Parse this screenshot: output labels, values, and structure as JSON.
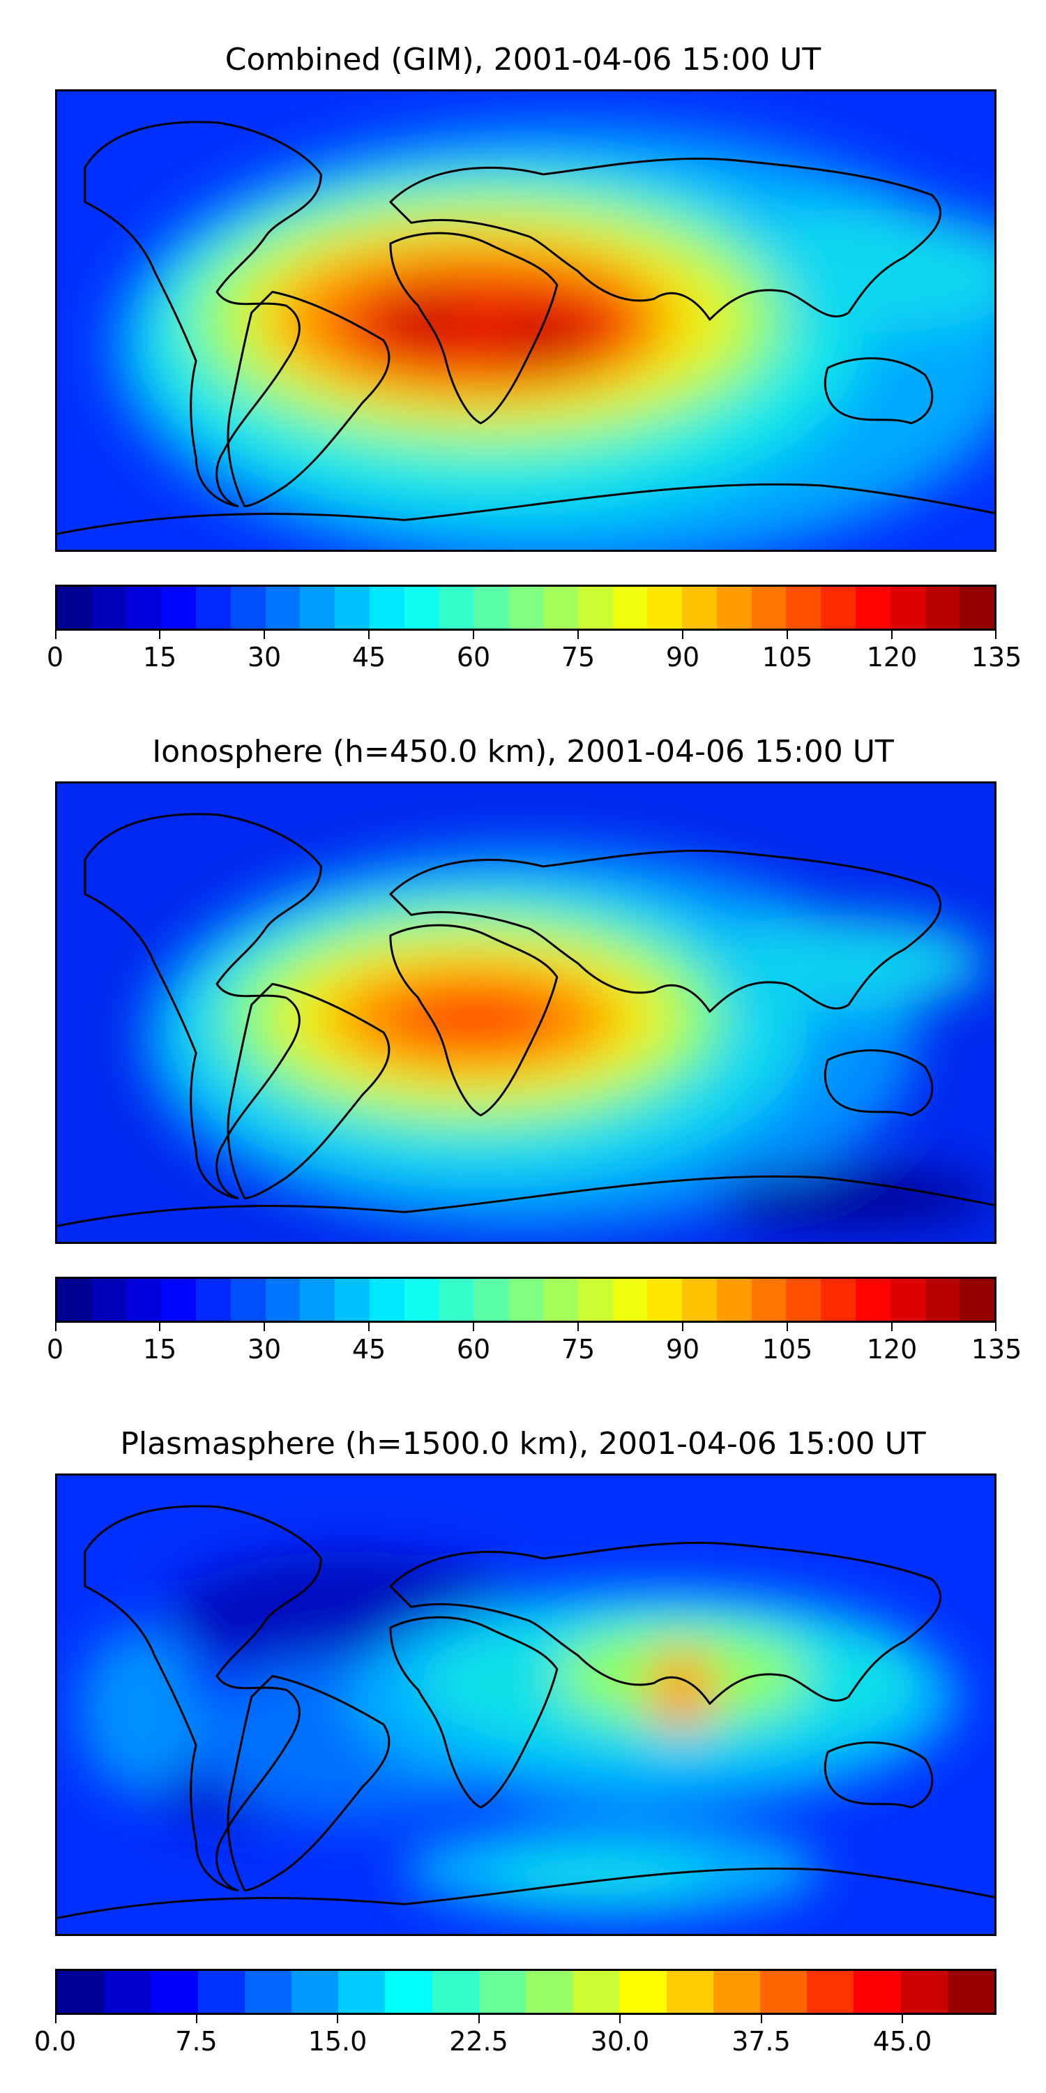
{
  "panels": [
    {
      "title": "Combined (GIM), 2001-04-06 15:00 UT",
      "colorbar": {
        "min": 0,
        "max": 135,
        "levels": 27,
        "tick_labels": [
          "0",
          "15",
          "30",
          "45",
          "60",
          "75",
          "90",
          "105",
          "120",
          "135"
        ],
        "tick_values": [
          0,
          15,
          30,
          45,
          60,
          75,
          90,
          105,
          120,
          135
        ]
      }
    },
    {
      "title": "Ionosphere  (h=450.0 km), 2001-04-06 15:00 UT",
      "colorbar": {
        "min": 0,
        "max": 135,
        "levels": 27,
        "tick_labels": [
          "0",
          "15",
          "30",
          "45",
          "60",
          "75",
          "90",
          "105",
          "120",
          "135"
        ],
        "tick_values": [
          0,
          15,
          30,
          45,
          60,
          75,
          90,
          105,
          120,
          135
        ]
      }
    },
    {
      "title": "Plasmasphere (h=1500.0 km), 2001-04-06 15:00 UT",
      "colorbar": {
        "min": 0,
        "max": 50,
        "levels": 20,
        "tick_labels": [
          "0.0",
          "7.5",
          "15.0",
          "22.5",
          "30.0",
          "37.5",
          "45.0"
        ],
        "tick_values": [
          0,
          7.5,
          15,
          22.5,
          30,
          37.5,
          45
        ]
      }
    }
  ],
  "colormap": "jet"
}
